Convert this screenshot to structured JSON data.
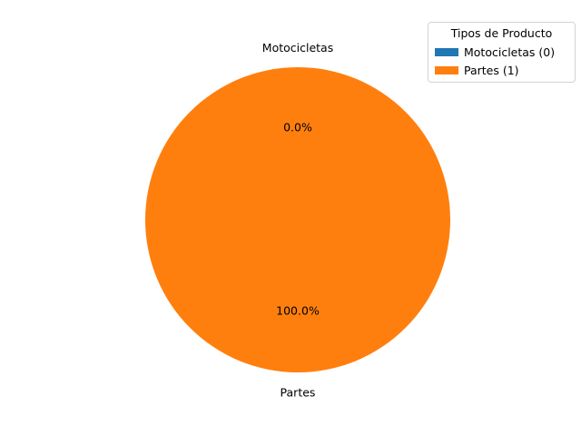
{
  "chart_data": {
    "type": "pie",
    "title": "",
    "categories": [
      "Motocicletas",
      "Partes"
    ],
    "values": [
      0,
      1
    ],
    "percent_labels": [
      "0.0%",
      "100.0%"
    ],
    "colors": [
      "#1f77b4",
      "#ff7f0e"
    ],
    "start_angle_deg": 90,
    "direction": "counterclockwise",
    "legend": {
      "title": "Tipos de Producto",
      "placement": "top-right",
      "entries": [
        "Motocicletas (0)",
        "Partes (1)"
      ]
    }
  }
}
